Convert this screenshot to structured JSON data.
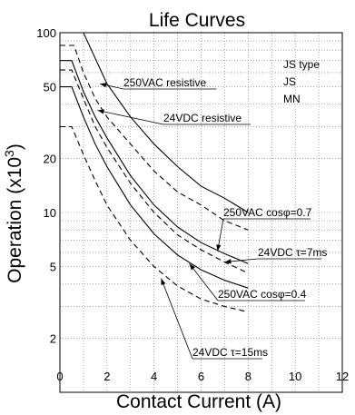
{
  "chart_data": {
    "type": "line",
    "title": "Life Curves",
    "xlabel": "Contact Current (A)",
    "ylabel_main": "Operation (x10",
    "ylabel_sup": "3",
    "ylabel_close": ")",
    "xlim": [
      0,
      12
    ],
    "ylim": [
      1,
      100
    ],
    "yscale": "log",
    "grid": true,
    "x_ticks": [
      "0",
      "2",
      "4",
      "6",
      "8",
      "10",
      "12"
    ],
    "y_ticks": [
      {
        "value": 100,
        "label": "100"
      },
      {
        "value": 50,
        "label": "50"
      },
      {
        "value": 20,
        "label": "20"
      },
      {
        "value": 10,
        "label": "10"
      },
      {
        "value": 5,
        "label": "5"
      },
      {
        "value": 2,
        "label": "2"
      }
    ],
    "legend": [
      "JS type",
      "JS",
      "MN"
    ],
    "series": [
      {
        "name": "250VAC resistive",
        "dash": "solid",
        "x": [
          0,
          1.0,
          1.5,
          2,
          3,
          4,
          5,
          6,
          7,
          8
        ],
        "y": [
          100,
          100,
          72,
          52,
          34,
          24,
          18,
          14,
          12,
          10
        ]
      },
      {
        "name": "24VDC resistive",
        "dash": "dashed",
        "x": [
          0,
          0.6,
          1.0,
          1.5,
          2,
          3,
          4,
          5,
          6,
          7,
          8
        ],
        "y": [
          85,
          85,
          60,
          43,
          34,
          24,
          17,
          13,
          11,
          9,
          8
        ]
      },
      {
        "name": "250VAC cosφ=0.7",
        "dash": "solid",
        "x": [
          0,
          0.5,
          1.0,
          1.5,
          2,
          3,
          4,
          5,
          6,
          7,
          8
        ],
        "y": [
          70,
          70,
          47,
          34,
          26,
          16,
          11,
          8.3,
          6.8,
          5.9,
          5.2
        ]
      },
      {
        "name": "24VDC τ=7ms",
        "dash": "dashed",
        "x": [
          0,
          0.5,
          1.0,
          1.5,
          2,
          3,
          4,
          5,
          6,
          7,
          8
        ],
        "y": [
          62,
          62,
          43,
          30,
          23,
          14.5,
          10,
          7.5,
          6.2,
          5.3,
          4.6
        ]
      },
      {
        "name": "250VAC cosφ=0.4",
        "dash": "solid",
        "x": [
          0,
          0.5,
          1.0,
          1.5,
          2,
          3,
          4,
          5,
          6,
          7,
          8
        ],
        "y": [
          50,
          50,
          34,
          24,
          18,
          11,
          7.6,
          5.8,
          4.8,
          4.2,
          3.8
        ]
      },
      {
        "name": "24VDC τ=15ms",
        "dash": "dashed",
        "x": [
          0,
          0.5,
          1.0,
          1.5,
          2,
          3,
          4,
          5,
          6,
          7,
          8
        ],
        "y": [
          30,
          30,
          21,
          15,
          11,
          7,
          5,
          3.9,
          3.3,
          3.0,
          2.8
        ]
      }
    ],
    "annotations": [
      {
        "text": "250VAC resistive",
        "series": 0,
        "point": [
          1.7,
          52
        ]
      },
      {
        "text": "24VDC resistive",
        "series": 1,
        "point": [
          1.6,
          37
        ]
      },
      {
        "text": "250VAC cosφ=0.7",
        "series": 2,
        "point": [
          6.7,
          6.1
        ]
      },
      {
        "text": "24VDC τ=7ms",
        "series": 3,
        "point": [
          7.0,
          5.3
        ]
      },
      {
        "text": "250VAC cosφ=0.4",
        "series": 4,
        "point": [
          5.5,
          5.2
        ]
      },
      {
        "text": "24VDC τ=15ms",
        "series": 5,
        "point": [
          4.3,
          4.3
        ]
      }
    ]
  }
}
